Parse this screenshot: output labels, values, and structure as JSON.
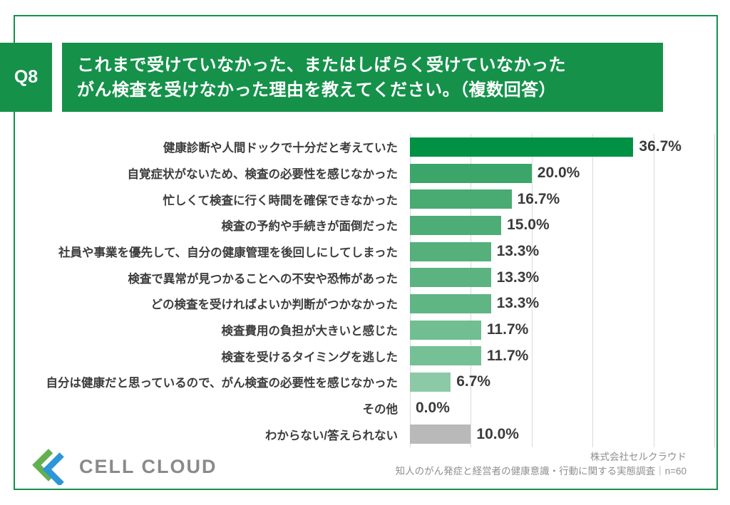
{
  "question": {
    "number": "Q8",
    "title_line1": "これまで受けていなかった、またはしばらく受けていなかった",
    "title_line2": "がん検査を受けなかった理由を教えてください。（複数回答）"
  },
  "chart_data": {
    "type": "bar",
    "orientation": "horizontal",
    "title": "",
    "xlabel": "",
    "ylabel": "",
    "xlim": [
      0,
      50
    ],
    "gridline_interval_pct": 10,
    "grid": true,
    "categories": [
      "健康診断や人間ドックで十分だと考えていた",
      "自覚症状がないため、検査の必要性を感じなかった",
      "忙しくて検査に行く時間を確保できなかった",
      "検査の予約や手続きが面倒だった",
      "社員や事業を優先して、自分の健康管理を後回しにしてしまった",
      "検査で異常が見つかることへの不安や恐怖があった",
      "どの検査を受ければよいか判断がつかなかった",
      "検査費用の負担が大きいと感じた",
      "検査を受けるタイミングを逃した",
      "自分は健康だと思っているので、がん検査の必要性を感じなかった",
      "その他",
      "わからない/答えられない"
    ],
    "values": [
      36.7,
      20.0,
      16.7,
      15.0,
      13.3,
      13.3,
      13.3,
      11.7,
      11.7,
      6.7,
      0.0,
      10.0
    ],
    "value_labels": [
      "36.7%",
      "20.0%",
      "16.7%",
      "15.0%",
      "13.3%",
      "13.3%",
      "13.3%",
      "11.7%",
      "11.7%",
      "6.7%",
      "0.0%",
      "10.0%"
    ],
    "bar_colors": [
      "#009145",
      "#3ca56a",
      "#49aa72",
      "#4ead76",
      "#55b07b",
      "#5bb381",
      "#60b584",
      "#70be91",
      "#75c095",
      "#8ccaa7",
      "#9fd2b4",
      "#b9b9b9"
    ]
  },
  "footer": {
    "logo_text": "CELL CLOUD",
    "source_line1": "株式会社セルクラウド",
    "source_line2": "知人のがん発症と経営者の健康意識・行動に関する実態調査｜n=60"
  },
  "colors": {
    "accent_green": "#15914a",
    "gridline": "#d9d9d9",
    "label_text": "#3d3d3d",
    "value_text": "#3b3b3b",
    "footer_text": "#8f8f8f",
    "logo_green": "#62b04f",
    "logo_blue": "#2b96d8",
    "neutral_bar": "#b9b9b9"
  }
}
